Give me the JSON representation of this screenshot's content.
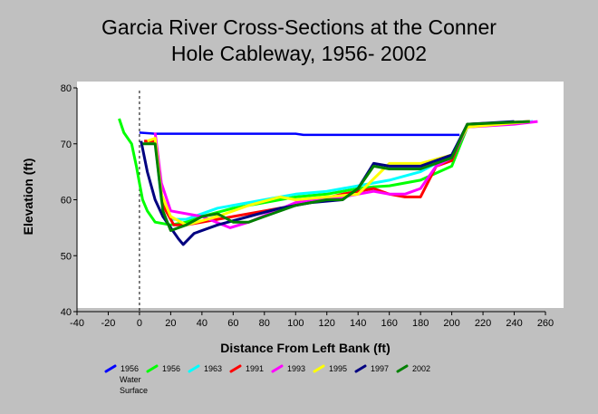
{
  "chart_data": {
    "type": "line",
    "title_lines": [
      "Garcia River Cross-Sections at the Conner",
      "Hole Cableway, 1956- 2002"
    ],
    "xlabel": "Distance From Left Bank (ft)",
    "ylabel": "Elevation (ft)",
    "xlim": [
      -40,
      260
    ],
    "ylim": [
      40,
      80
    ],
    "xticks": [
      -40,
      -20,
      0,
      20,
      40,
      60,
      80,
      100,
      120,
      140,
      160,
      180,
      200,
      220,
      240,
      260
    ],
    "yticks": [
      40,
      50,
      60,
      70,
      80
    ],
    "reference_line": {
      "x": 0,
      "style": "dashed"
    },
    "legend_position": "bottom",
    "series": [
      {
        "name": "1956 Water Surface",
        "color": "#0000ff",
        "x": [
          0,
          10,
          100,
          105,
          205
        ],
        "y": [
          72,
          71.8,
          71.8,
          71.6,
          71.6
        ]
      },
      {
        "name": "1956",
        "color": "#00ff00",
        "x": [
          -13,
          -10,
          -5,
          -2,
          0,
          2,
          5,
          10,
          20,
          30,
          40,
          60,
          80,
          100,
          120,
          140,
          150,
          160,
          180,
          200,
          210,
          230,
          250
        ],
        "y": [
          74.5,
          72,
          70,
          66,
          63,
          60,
          58,
          56,
          55.5,
          56,
          57,
          58.5,
          59.5,
          60.5,
          61,
          62,
          62.3,
          62.5,
          63.5,
          66,
          73,
          73.5,
          74
        ]
      },
      {
        "name": "1963",
        "color": "#00ffff",
        "x": [
          5,
          10,
          14,
          20,
          30,
          50,
          80,
          100,
          120,
          140,
          160,
          180,
          200,
          210,
          230,
          252
        ],
        "y": [
          70.5,
          70.5,
          60,
          56.5,
          56.5,
          58.5,
          60,
          61,
          61.5,
          62.5,
          63.5,
          65,
          68,
          73,
          73.5,
          74
        ]
      },
      {
        "name": "1991",
        "color": "#ff0000",
        "x": [
          3,
          10,
          15,
          22,
          30,
          60,
          100,
          130,
          150,
          160,
          170,
          180,
          190,
          200,
          210,
          250
        ],
        "y": [
          70.5,
          70.5,
          59,
          55.5,
          55.5,
          57,
          59,
          61,
          62,
          61,
          60.5,
          60.5,
          66,
          67,
          73.5,
          74
        ]
      },
      {
        "name": "1993",
        "color": "#ff00ff",
        "x": [
          10,
          14,
          20,
          40,
          58,
          70,
          100,
          130,
          150,
          160,
          170,
          180,
          190,
          200,
          210,
          240,
          255
        ],
        "y": [
          72,
          63,
          58,
          57,
          55,
          56,
          59.5,
          60.5,
          61.5,
          61,
          61,
          62,
          66,
          67.5,
          73,
          73.5,
          74
        ]
      },
      {
        "name": "1995",
        "color": "#ffff00",
        "x": [
          5,
          10,
          14,
          20,
          30,
          50,
          70,
          90,
          100,
          120,
          140,
          160,
          180,
          200,
          210,
          250
        ],
        "y": [
          70.5,
          71,
          61,
          57,
          55.5,
          57,
          59,
          60.5,
          60,
          60.5,
          61,
          66.5,
          66.5,
          68,
          73,
          74
        ]
      },
      {
        "name": "1997",
        "color": "#000080",
        "x": [
          1,
          5,
          10,
          15,
          20,
          25,
          28,
          35,
          50,
          70,
          90,
          110,
          130,
          140,
          150,
          160,
          180,
          200,
          210,
          240
        ],
        "y": [
          70.5,
          65,
          60,
          57,
          55,
          53,
          52,
          54,
          55.5,
          57,
          58.5,
          59.5,
          60,
          62,
          66.5,
          66,
          66,
          68,
          73.5,
          74
        ]
      },
      {
        "name": "2002",
        "color": "#008000",
        "x": [
          2,
          10,
          15,
          20,
          30,
          40,
          50,
          60,
          70,
          80,
          100,
          120,
          130,
          140,
          150,
          160,
          180,
          200,
          210,
          250
        ],
        "y": [
          70,
          70,
          58,
          54.5,
          55.5,
          57,
          57.5,
          56,
          56,
          57,
          59,
          60,
          60,
          62,
          66,
          65.5,
          65.5,
          67.5,
          73.5,
          74
        ]
      }
    ],
    "legend_labels": [
      {
        "lines": [
          "1956",
          "Water",
          "Surface"
        ]
      },
      {
        "lines": [
          "1956"
        ]
      },
      {
        "lines": [
          "1963"
        ]
      },
      {
        "lines": [
          "1991"
        ]
      },
      {
        "lines": [
          "1993"
        ]
      },
      {
        "lines": [
          "1995"
        ]
      },
      {
        "lines": [
          "1997"
        ]
      },
      {
        "lines": [
          "2002"
        ]
      }
    ]
  }
}
